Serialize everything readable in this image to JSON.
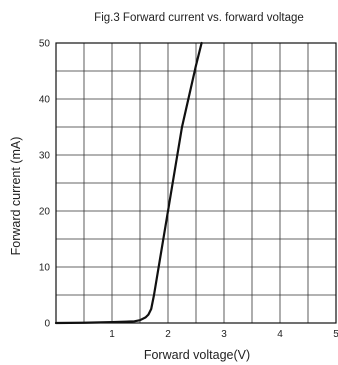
{
  "chart_data": {
    "type": "line",
    "title": "Fig.3 Forward current vs. forward voltage",
    "xlabel": "Forward voltage(V)",
    "ylabel": "Forward current (mA)",
    "xlim": [
      0,
      5
    ],
    "ylim": [
      0,
      50
    ],
    "xticks": [
      1,
      2,
      3,
      4,
      5
    ],
    "xtick_labels": [
      "1",
      "2",
      "3",
      "4",
      "5"
    ],
    "yticks": [
      0,
      10,
      20,
      30,
      40,
      50
    ],
    "ytick_labels": [
      "0",
      "10",
      "20",
      "30",
      "40",
      "50"
    ],
    "x_minor_step": 0.5,
    "y_minor_step": 5,
    "grid": true,
    "line_color": "#111111",
    "grid_color": "#333333",
    "series": [
      {
        "x": [
          0,
          0.5,
          1.0,
          1.4,
          1.5,
          1.6,
          1.65,
          1.7,
          1.75,
          2.0,
          2.25,
          2.5,
          2.6
        ],
        "y": [
          0,
          0.05,
          0.15,
          0.3,
          0.5,
          1.0,
          1.5,
          2.5,
          5.0,
          20.0,
          35.0,
          46.0,
          50.0
        ]
      }
    ]
  }
}
